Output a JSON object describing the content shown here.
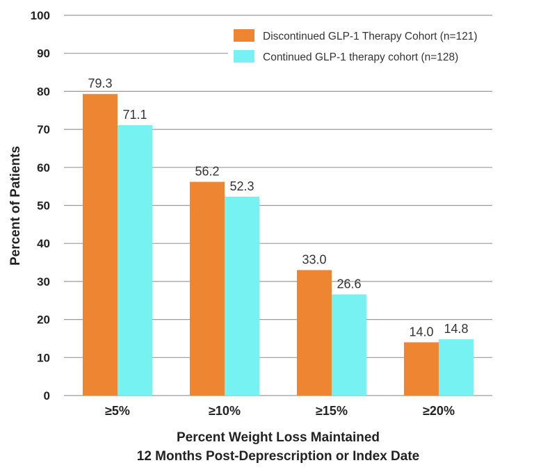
{
  "chart_data": {
    "type": "bar",
    "categories": [
      "≥5%",
      "≥10%",
      "≥15%",
      "≥20%"
    ],
    "series": [
      {
        "name": "Discontinued GLP-1 Therapy Cohort (n=121)",
        "color": "#ee8533",
        "values": [
          79.3,
          56.2,
          33.0,
          14.0
        ],
        "labels": [
          "79.3",
          "56.2",
          "33.0",
          "14.0"
        ]
      },
      {
        "name": "Continued GLP-1 therapy cohort (n=128)",
        "color": "#77f2f2",
        "values": [
          71.1,
          52.3,
          26.6,
          14.8
        ],
        "labels": [
          "71.1",
          "52.3",
          "26.6",
          "14.8"
        ]
      }
    ],
    "ylabel": "Percent of Patients",
    "xlabel_lines": [
      "Percent Weight Loss Maintained",
      "12 Months Post-Deprescription or Index Date"
    ],
    "ylim": [
      0,
      100
    ],
    "yticks": [
      "0",
      "10",
      "20",
      "30",
      "40",
      "50",
      "60",
      "70",
      "80",
      "90",
      "100"
    ],
    "grid": true,
    "legend_position": "top-right"
  }
}
